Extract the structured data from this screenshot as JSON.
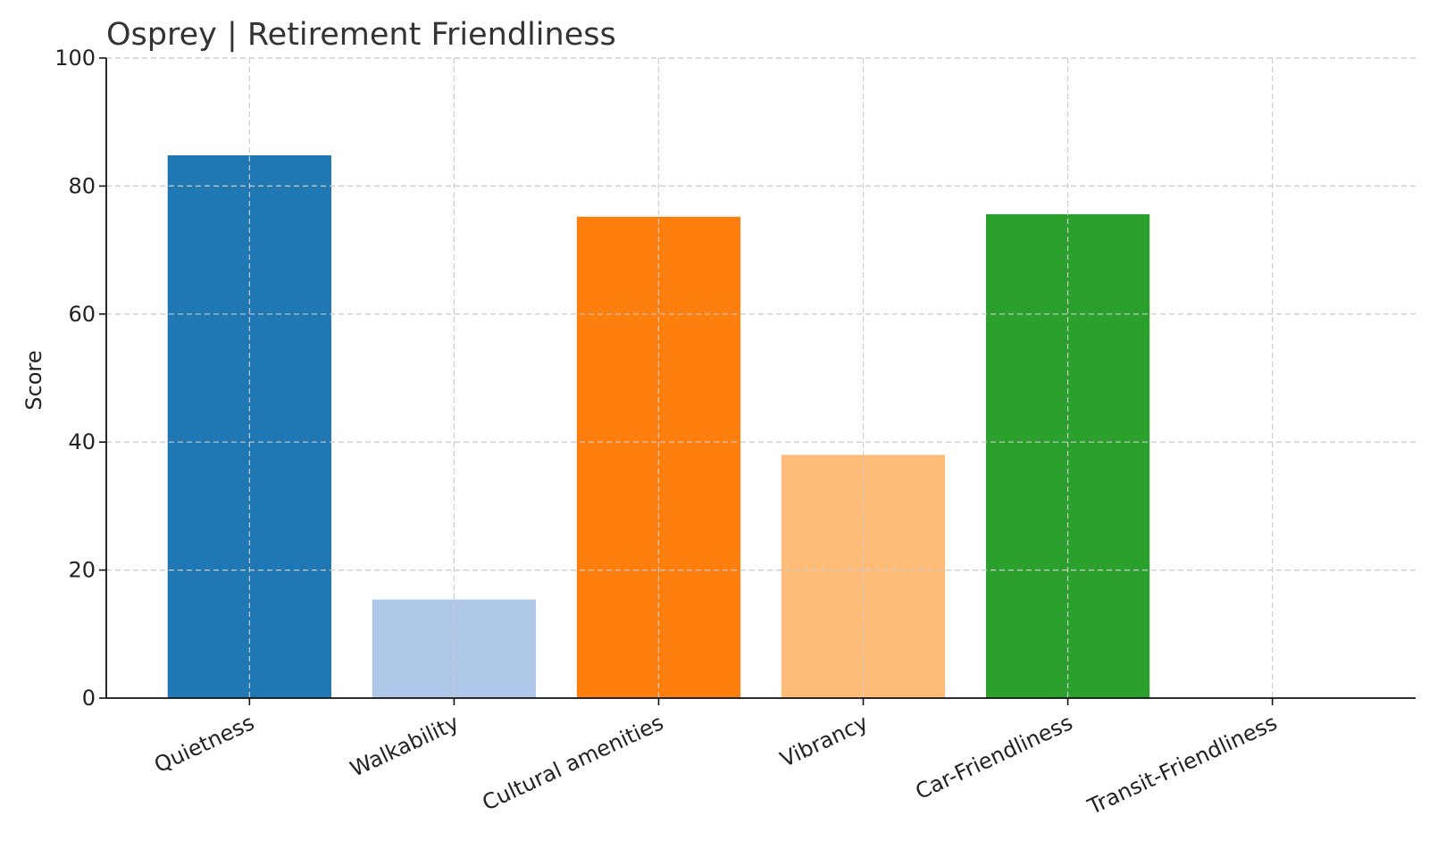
{
  "chart_data": {
    "type": "bar",
    "title": "Osprey | Retirement Friendliness",
    "xlabel": "",
    "ylabel": "Score",
    "ylim": [
      0,
      100
    ],
    "yticks": [
      0,
      20,
      40,
      60,
      80,
      100
    ],
    "categories": [
      "Quietness",
      "Walkability",
      "Cultural amenities",
      "Vibrancy",
      "Car-Friendliness",
      "Transit-Friendliness"
    ],
    "values": [
      84.8,
      15.4,
      75.2,
      38.0,
      75.6,
      0
    ],
    "colors": [
      "#1f77b4",
      "#aec7e8",
      "#ff7f0e",
      "#ffbb78",
      "#2ca02c",
      "#98df8a"
    ],
    "grid": true,
    "legend": "none"
  }
}
